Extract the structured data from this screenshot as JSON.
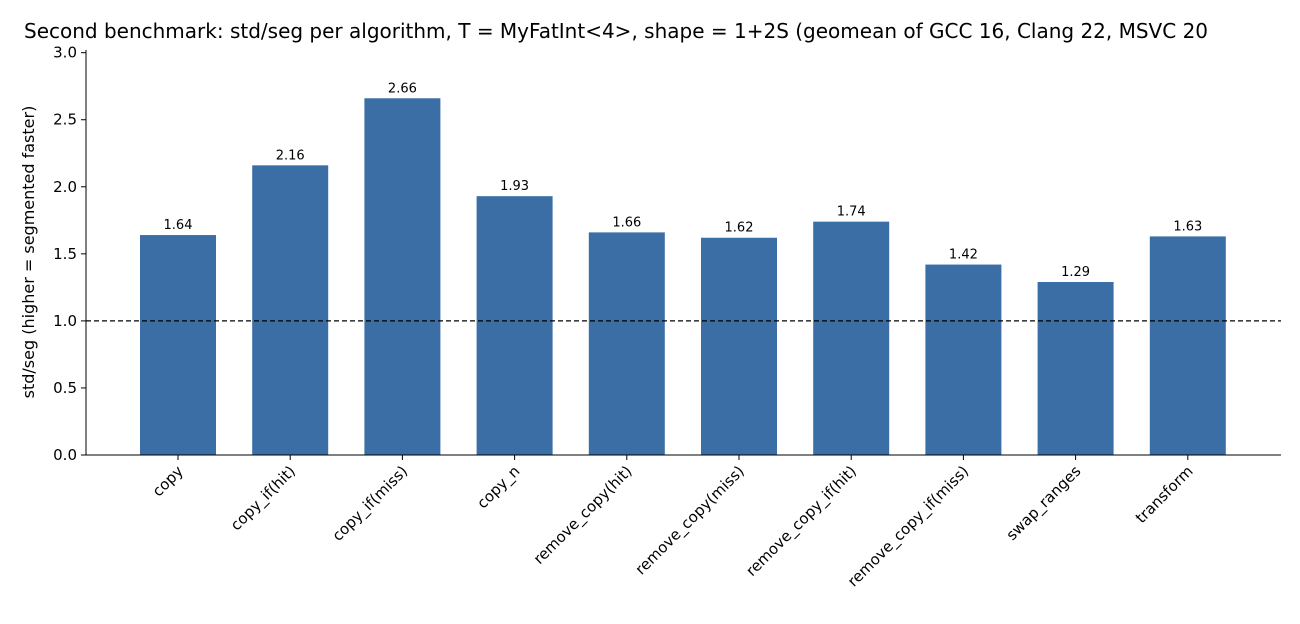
{
  "chart_data": {
    "type": "bar",
    "title": "Second benchmark: std/seg per algorithm, T = MyFatInt<4>, shape = 1+2S (geomean of GCC 16, Clang 22, MSVC 20",
    "y_label": "std/seg  (higher = segmented faster)",
    "categories": [
      "copy",
      "copy_if(hit)",
      "copy_if(miss)",
      "copy_n",
      "remove_copy(hit)",
      "remove_copy(miss)",
      "remove_copy_if(hit)",
      "remove_copy_if(miss)",
      "swap_ranges",
      "transform"
    ],
    "values": [
      1.64,
      2.16,
      2.66,
      1.93,
      1.66,
      1.62,
      1.74,
      1.42,
      1.29,
      1.63
    ],
    "value_labels": [
      "1.64",
      "2.16",
      "2.66",
      "1.93",
      "1.66",
      "1.62",
      "1.74",
      "1.42",
      "1.29",
      "1.63"
    ],
    "color": "#3a6ea5",
    "reference_line": 1,
    "ylim": [
      0,
      3.02
    ],
    "yticks": [
      {
        "value": 0,
        "label": "0.0"
      },
      {
        "value": 0.5,
        "label": "0.5"
      },
      {
        "value": 1,
        "label": "1.0"
      },
      {
        "value": 1.5,
        "label": "1.5"
      },
      {
        "value": 2,
        "label": "2.0"
      },
      {
        "value": 2.5,
        "label": "2.5"
      },
      {
        "value": 3,
        "label": "3.0"
      }
    ],
    "grid": false
  }
}
